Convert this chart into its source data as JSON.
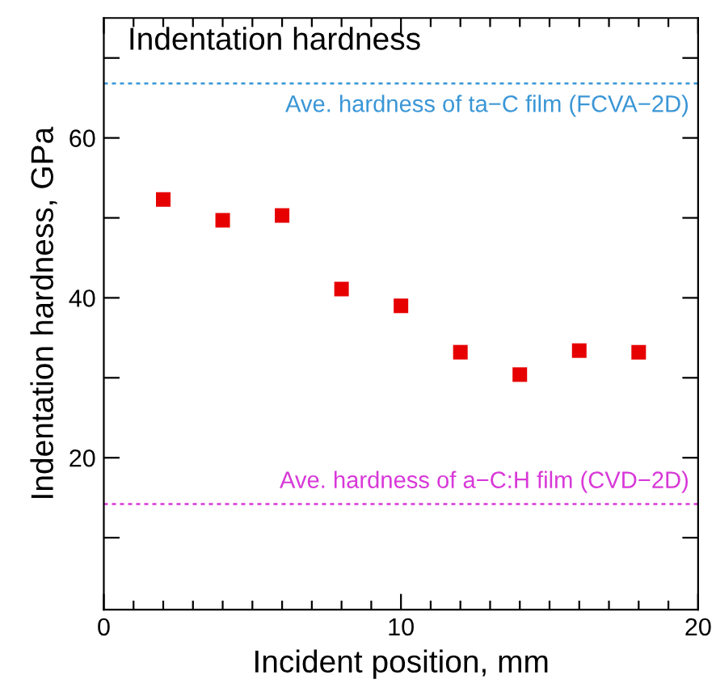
{
  "chart_data": {
    "type": "scatter",
    "title": "Indentation hardness",
    "xlabel": "Incident position, mm",
    "ylabel": "Indentation hardness, GPa",
    "x": [
      2,
      4,
      6,
      8,
      10,
      12,
      14,
      16,
      18
    ],
    "series": [
      {
        "color": "#e60000",
        "values": [
          52.3,
          49.7,
          50.3,
          41.1,
          39.0,
          33.2,
          30.4,
          33.4,
          33.2
        ]
      }
    ],
    "marker": "square",
    "grid": false,
    "xlim": [
      0,
      20
    ],
    "ylim": [
      1,
      75
    ],
    "xticks": [
      0,
      {
        "value": 1,
        "label": null
      },
      {
        "value": 2,
        "label": null
      },
      {
        "value": 3,
        "label": null
      },
      {
        "value": 4,
        "label": null
      },
      {
        "value": 5,
        "label": null
      },
      {
        "value": 6,
        "label": null
      },
      {
        "value": 7,
        "label": null
      },
      {
        "value": 8,
        "label": null
      },
      {
        "value": 9,
        "label": null
      },
      10,
      {
        "value": 11,
        "label": null
      },
      {
        "value": 12,
        "label": null
      },
      {
        "value": 13,
        "label": null
      },
      {
        "value": 14,
        "label": null
      },
      {
        "value": 15,
        "label": null
      },
      {
        "value": 16,
        "label": null
      },
      {
        "value": 17,
        "label": null
      },
      {
        "value": 18,
        "label": null
      },
      {
        "value": 19,
        "label": null
      },
      20
    ],
    "yticks": [
      {
        "value": 10,
        "label": null
      },
      20,
      {
        "value": 30,
        "label": null
      },
      40,
      {
        "value": 50,
        "label": null
      },
      60,
      {
        "value": 70,
        "label": null
      }
    ],
    "ref_lines": [
      {
        "axis": "y",
        "value": 66.8,
        "label": "Ave. hardness of ta−C film (FCVA−2D)",
        "color": "#3a96d6",
        "line_style": "dotted"
      },
      {
        "axis": "y",
        "value": 14.2,
        "label": "Ave. hardness of a−C:H film (CVD−2D)",
        "color": "#d838d8",
        "line_style": "dotted"
      }
    ]
  }
}
